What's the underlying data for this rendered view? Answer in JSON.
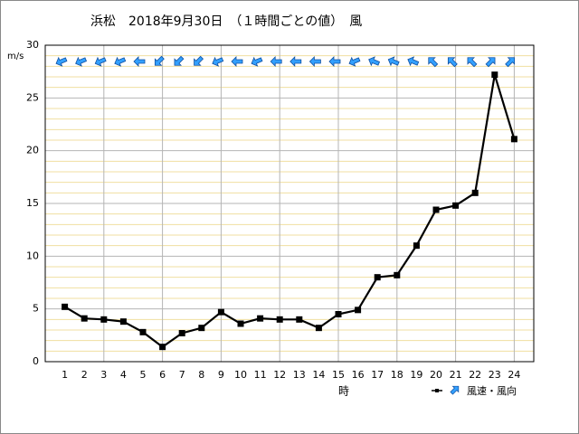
{
  "chart_data": {
    "type": "line",
    "title": "浜松　2018年9月30日　（１時間ごとの値）　風",
    "y_label": "m/s",
    "x_label": "時",
    "categories": [
      "1",
      "2",
      "3",
      "4",
      "5",
      "6",
      "7",
      "8",
      "9",
      "10",
      "11",
      "12",
      "13",
      "14",
      "15",
      "16",
      "17",
      "18",
      "19",
      "20",
      "21",
      "22",
      "23",
      "24"
    ],
    "series": [
      {
        "name": "風速・風向",
        "color": "#000000",
        "values": [
          5.2,
          4.1,
          4.0,
          3.8,
          2.8,
          1.4,
          2.7,
          3.2,
          4.7,
          3.6,
          4.1,
          4.0,
          4.0,
          3.2,
          4.5,
          4.9,
          8.0,
          8.2,
          11.0,
          14.4,
          14.8,
          16.0,
          27.2,
          21.1
        ]
      }
    ],
    "wind_from_deg": [
      67.5,
      67.5,
      67.5,
      67.5,
      90,
      45,
      45,
      45,
      67.5,
      90,
      67.5,
      90,
      90,
      90,
      90,
      67.5,
      112.5,
      112.5,
      112.5,
      135,
      135,
      135,
      225,
      225
    ],
    "arrow_color": "#33a0ff",
    "ylim": [
      0,
      30
    ],
    "yticks": [
      0,
      5,
      10,
      15,
      20,
      25,
      30
    ],
    "minor_yticks": [
      1,
      2,
      3,
      4,
      6,
      7,
      8,
      9,
      11,
      12,
      13,
      14,
      16,
      17,
      18,
      19,
      21,
      22,
      23,
      24,
      26,
      27,
      28,
      29
    ],
    "grid": true
  }
}
